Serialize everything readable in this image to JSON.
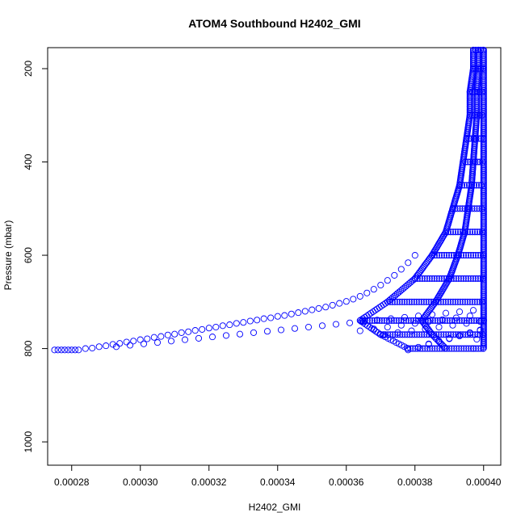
{
  "chart_data": {
    "type": "scatter",
    "title": "ATOM4 Southbound H2402_GMI",
    "xlabel": "H2402_GMI",
    "ylabel": "Pressure (mbar)",
    "xlim": [
      0.000273,
      0.000405
    ],
    "ylim": [
      1050,
      155
    ],
    "y_axis_reversed": true,
    "x_ticks": [
      "0.00028",
      "0.00030",
      "0.00032",
      "0.00034",
      "0.00036",
      "0.00038",
      "0.00040"
    ],
    "x_tick_values": [
      0.00028,
      0.0003,
      0.00032,
      0.00034,
      0.00036,
      0.00038,
      0.0004
    ],
    "y_ticks": [
      "200",
      "400",
      "600",
      "800",
      "1000"
    ],
    "y_tick_values": [
      200,
      400,
      600,
      800,
      1000
    ],
    "marker": "open-circle",
    "color": "#0000ff",
    "series": [
      {
        "points": [
          [
            0.000275,
            803
          ],
          [
            0.000276,
            803
          ],
          [
            0.000277,
            803
          ],
          [
            0.000278,
            803
          ],
          [
            0.000279,
            803
          ],
          [
            0.00028,
            803
          ],
          [
            0.000281,
            803
          ],
          [
            0.000282,
            803
          ],
          [
            0.000284,
            800
          ],
          [
            0.000286,
            799
          ],
          [
            0.000288,
            796
          ],
          [
            0.00029,
            794
          ],
          [
            0.000292,
            791
          ],
          [
            0.000294,
            789
          ],
          [
            0.000296,
            786
          ],
          [
            0.000298,
            784
          ],
          [
            0.0003,
            781
          ],
          [
            0.000302,
            779
          ],
          [
            0.000304,
            776
          ],
          [
            0.000306,
            774
          ],
          [
            0.000308,
            771
          ],
          [
            0.00031,
            769
          ],
          [
            0.000312,
            766
          ],
          [
            0.000314,
            764
          ],
          [
            0.000316,
            761
          ],
          [
            0.000318,
            759
          ],
          [
            0.00032,
            756
          ],
          [
            0.000322,
            754
          ],
          [
            0.000324,
            751
          ],
          [
            0.000326,
            749
          ],
          [
            0.000328,
            746
          ],
          [
            0.00033,
            744
          ],
          [
            0.000332,
            741
          ],
          [
            0.000334,
            739
          ],
          [
            0.000336,
            736
          ],
          [
            0.000338,
            734
          ],
          [
            0.00034,
            731
          ],
          [
            0.000342,
            729
          ],
          [
            0.000344,
            726
          ],
          [
            0.000346,
            723
          ],
          [
            0.000348,
            720
          ],
          [
            0.00035,
            717
          ],
          [
            0.000352,
            714
          ],
          [
            0.000354,
            711
          ],
          [
            0.000356,
            707
          ],
          [
            0.000358,
            703
          ],
          [
            0.00036,
            699
          ],
          [
            0.000362,
            694
          ],
          [
            0.000364,
            688
          ],
          [
            0.000366,
            681
          ],
          [
            0.000368,
            673
          ],
          [
            0.00037,
            664
          ],
          [
            0.000372,
            654
          ],
          [
            0.000374,
            643
          ],
          [
            0.000376,
            630
          ],
          [
            0.000378,
            616
          ],
          [
            0.00038,
            600
          ],
          [
            0.000293,
            796
          ],
          [
            0.000297,
            793
          ],
          [
            0.000301,
            790
          ],
          [
            0.000305,
            787
          ],
          [
            0.000309,
            784
          ],
          [
            0.000313,
            781
          ],
          [
            0.000317,
            778
          ],
          [
            0.000321,
            775
          ],
          [
            0.000325,
            772
          ],
          [
            0.000329,
            769
          ],
          [
            0.000333,
            766
          ],
          [
            0.000337,
            763
          ],
          [
            0.000341,
            760
          ],
          [
            0.000345,
            757
          ],
          [
            0.000349,
            754
          ],
          [
            0.000353,
            751
          ],
          [
            0.000357,
            748
          ],
          [
            0.000361,
            745
          ],
          [
            0.000365,
            742
          ],
          [
            0.000369,
            739
          ],
          [
            0.000373,
            736
          ],
          [
            0.000377,
            733
          ],
          [
            0.000381,
            730
          ],
          [
            0.000385,
            727
          ],
          [
            0.000389,
            724
          ],
          [
            0.000393,
            721
          ],
          [
            0.000397,
            718
          ],
          [
            0.000364,
            762
          ],
          [
            0.000368,
            758
          ],
          [
            0.000372,
            754
          ],
          [
            0.000376,
            750
          ],
          [
            0.00038,
            746
          ],
          [
            0.000384,
            742
          ],
          [
            0.000388,
            738
          ],
          [
            0.000392,
            734
          ],
          [
            0.000396,
            730
          ],
          [
            0.000371,
            770
          ],
          [
            0.000375,
            766
          ],
          [
            0.000379,
            762
          ],
          [
            0.000383,
            758
          ],
          [
            0.000387,
            754
          ],
          [
            0.000391,
            750
          ],
          [
            0.000395,
            746
          ],
          [
            0.000399,
            742
          ],
          [
            0.000378,
            803
          ],
          [
            0.000381,
            797
          ],
          [
            0.000384,
            791
          ],
          [
            0.000387,
            785
          ],
          [
            0.00039,
            779
          ],
          [
            0.000393,
            773
          ],
          [
            0.000396,
            767
          ],
          [
            0.000399,
            761
          ],
          [
            0.000384,
            790
          ],
          [
            0.000387,
            784
          ],
          [
            0.00039,
            778
          ],
          [
            0.000393,
            772
          ],
          [
            0.000396,
            766
          ],
          [
            0.000397,
            800
          ],
          [
            0.000398,
            780
          ],
          [
            0.000399,
            760
          ],
          [
            0.0004,
            740
          ]
        ]
      },
      {
        "name": "",
        "band": [
          [
            160,
            0.000397,
            0.0004
          ],
          [
            200,
            0.000397,
            0.0004
          ],
          [
            250,
            0.000396,
            0.0004
          ],
          [
            300,
            0.000396,
            0.0004
          ],
          [
            350,
            0.000395,
            0.0004
          ],
          [
            400,
            0.000394,
            0.0004
          ],
          [
            450,
            0.000393,
            0.0004
          ],
          [
            500,
            0.000391,
            0.0004
          ],
          [
            550,
            0.000389,
            0.0004
          ],
          [
            600,
            0.000385,
            0.0004
          ],
          [
            650,
            0.00038,
            0.0004
          ],
          [
            700,
            0.000372,
            0.0004
          ],
          [
            740,
            0.000364,
            0.0004
          ],
          [
            770,
            0.00037,
            0.0004
          ],
          [
            800,
            0.000378,
            0.0004
          ]
        ]
      }
    ]
  }
}
